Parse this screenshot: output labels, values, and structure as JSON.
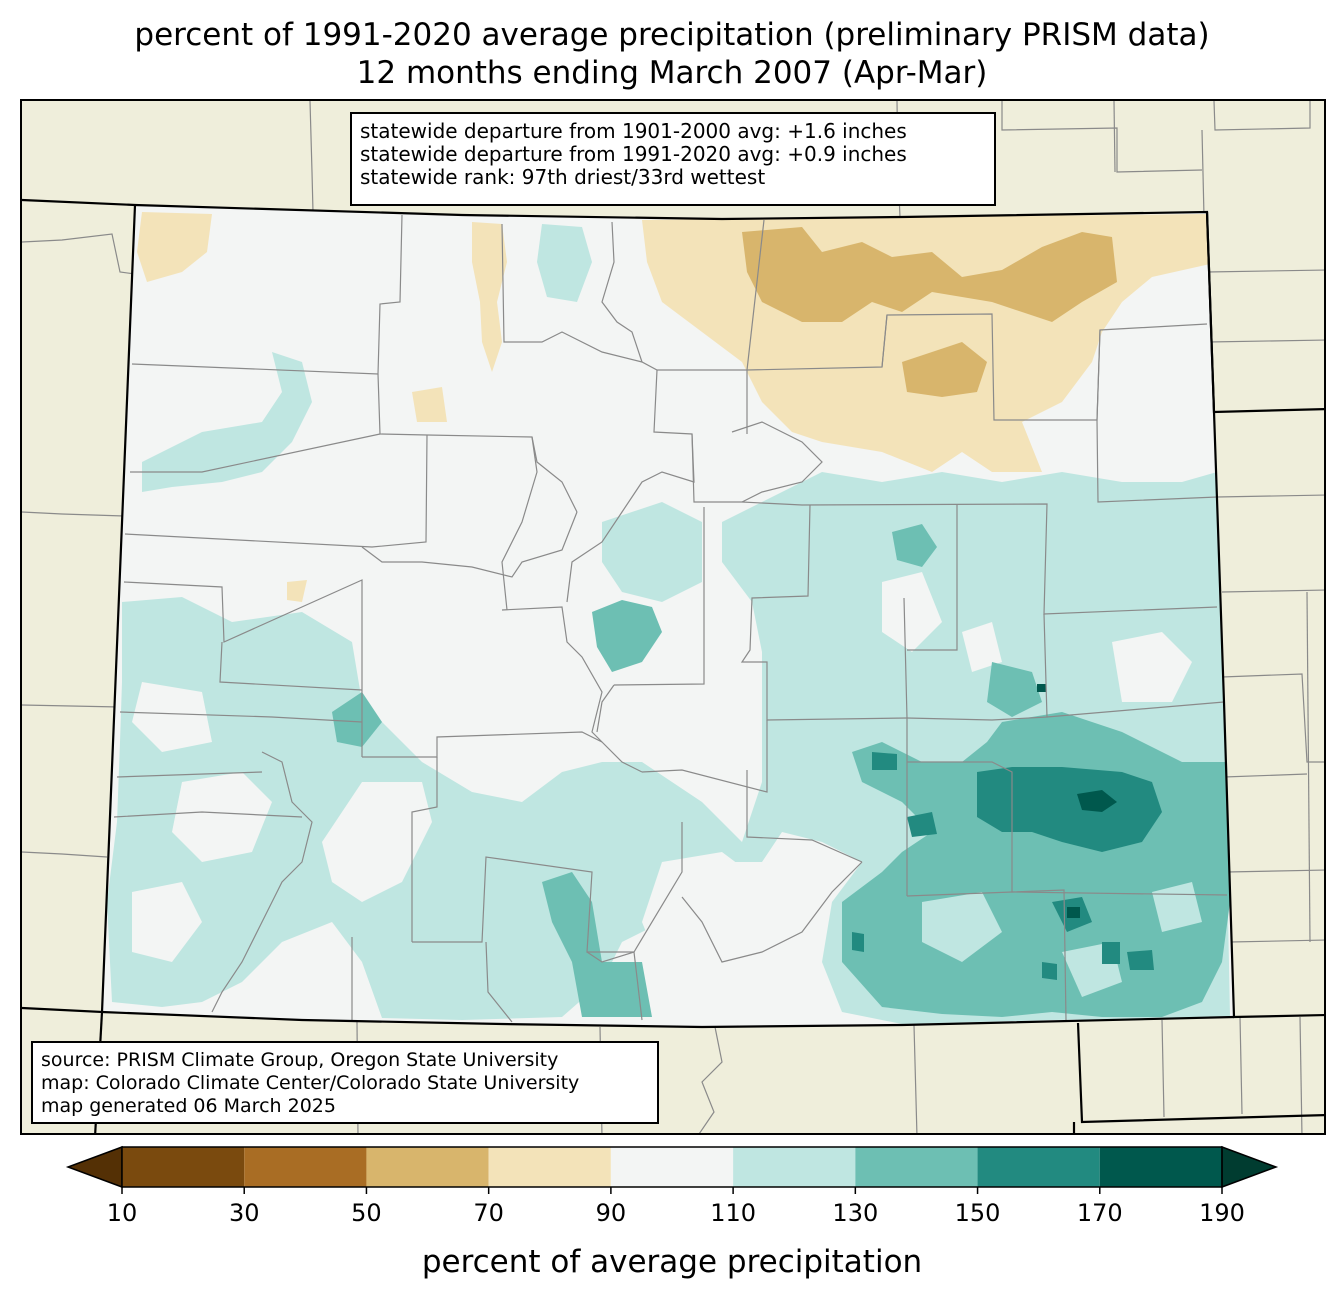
{
  "title": {
    "line1": "percent of 1991-2020 average precipitation (preliminary PRISM data)",
    "line2": "12 months ending March 2007 (Apr-Mar)"
  },
  "stats": {
    "line1": "statewide departure from 1901-2000 avg: +1.6 inches",
    "line2": "statewide departure from 1991-2020 avg: +0.9 inches",
    "line3": "statewide rank: 97th driest/33rd wettest"
  },
  "credits": {
    "line1": "source: PRISM Climate Group, Oregon State University",
    "line2": "map: Colorado Climate Center/Colorado State University",
    "line3": "map generated 06 March 2025"
  },
  "colorbar": {
    "label": "percent of average precipitation",
    "ticks": [
      "10",
      "30",
      "50",
      "70",
      "90",
      "110",
      "130",
      "150",
      "170",
      "190"
    ],
    "under_color": "#543005",
    "over_color": "#003c30",
    "bin_colors": [
      "#7a4a0e",
      "#a96d24",
      "#d8b56c",
      "#f3e3b9",
      "#f3f5f4",
      "#bfe6e1",
      "#6dbfb3",
      "#228a80",
      "#00584d"
    ]
  },
  "map_colors": {
    "background_land": "#efeedb",
    "state_fill": "#f3f5f4",
    "county_lines": "#8a8a8a",
    "state_lines": "#000000"
  }
}
